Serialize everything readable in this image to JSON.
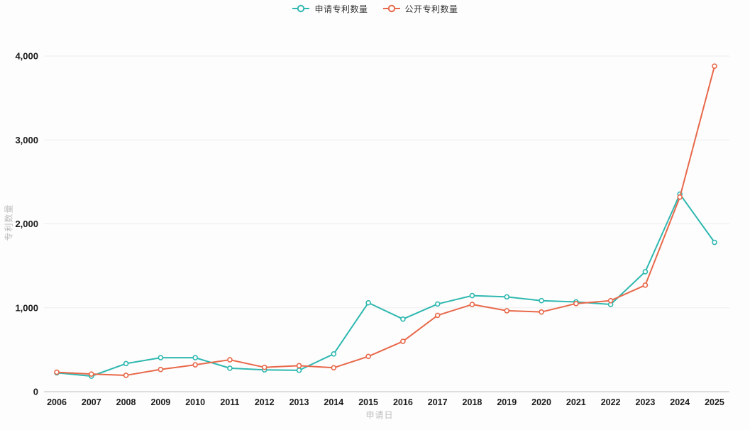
{
  "legend": {
    "items": [
      {
        "label": "申请专利数量",
        "color": "#2fb8b0"
      },
      {
        "label": "公开专利数量",
        "color": "#e8684a"
      }
    ]
  },
  "axes": {
    "y_title": "专利数量",
    "x_title": "申请日",
    "y_ticks": [
      "0",
      "1,000",
      "2,000",
      "3,000",
      "4,000"
    ],
    "y_tick_values": [
      0,
      1000,
      2000,
      3000,
      4000
    ]
  },
  "chart_data": {
    "type": "line",
    "title": "",
    "xlabel": "申请日",
    "ylabel": "专利数量",
    "ylim": [
      0,
      4000
    ],
    "grid": true,
    "legend_position": "top",
    "x": [
      2006,
      2007,
      2008,
      2009,
      2010,
      2011,
      2012,
      2013,
      2014,
      2015,
      2016,
      2017,
      2018,
      2019,
      2020,
      2021,
      2022,
      2023,
      2024,
      2025
    ],
    "series": [
      {
        "name": "申请专利数量",
        "color": "#2fb8b0",
        "values": [
          225,
          185,
          335,
          405,
          405,
          280,
          260,
          255,
          450,
          1060,
          865,
          1045,
          1145,
          1130,
          1085,
          1070,
          1040,
          1430,
          2355,
          1780
        ]
      },
      {
        "name": "公开专利数量",
        "color": "#e8684a",
        "values": [
          232,
          210,
          195,
          265,
          320,
          380,
          290,
          310,
          285,
          420,
          600,
          910,
          1040,
          965,
          950,
          1050,
          1085,
          1270,
          2320,
          3880
        ]
      }
    ]
  }
}
